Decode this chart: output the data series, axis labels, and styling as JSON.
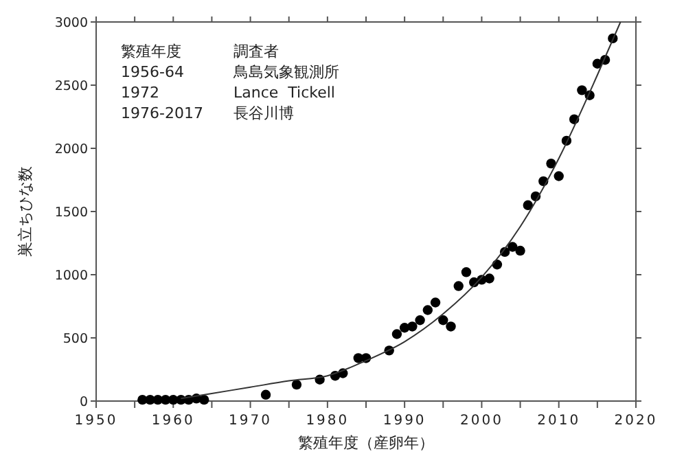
{
  "chart_data": {
    "type": "scatter",
    "xlabel": "繁殖年度（産卵年）",
    "ylabel": "巣立ちひな数",
    "xlim": [
      1950,
      2020
    ],
    "xticks": [
      1950,
      {
        "value": 1955,
        "label": null
      },
      1960,
      {
        "value": 1965,
        "label": null
      },
      1970,
      {
        "value": 1975,
        "label": null
      },
      1980,
      {
        "value": 1985,
        "label": null
      },
      1990,
      {
        "value": 1995,
        "label": null
      },
      2000,
      {
        "value": 2005,
        "label": null
      },
      2010,
      {
        "value": 2015,
        "label": null
      },
      2020
    ],
    "ylim": [
      0,
      3000
    ],
    "yticks": [
      0,
      500,
      1000,
      1500,
      2000,
      2500,
      3000
    ],
    "grid": false,
    "marker": "circle",
    "annotations": [
      "繁殖年度",
      "調査者",
      "1956-64",
      "鳥島気象観測所",
      "1972",
      "Lance  Tickell",
      "1976-2017",
      "長谷川博"
    ],
    "series": [
      {
        "color": "#000000",
        "x": [
          1956,
          1957,
          1958,
          1959,
          1960,
          1961,
          1962,
          1963,
          1964,
          1972,
          1976,
          1979,
          1981,
          1982,
          1984,
          1985,
          1988,
          1989,
          1990,
          1991,
          1992,
          1993,
          1994,
          1995,
          1996,
          1997,
          1998,
          1999,
          2000,
          2001,
          2002,
          2003,
          2004,
          2005,
          2006,
          2007,
          2008,
          2009,
          2010,
          2011,
          2012,
          2013,
          2014,
          2015,
          2016,
          2017
        ],
        "values": [
          10,
          10,
          10,
          10,
          10,
          10,
          10,
          20,
          10,
          50,
          130,
          170,
          200,
          220,
          340,
          340,
          400,
          530,
          580,
          590,
          640,
          720,
          780,
          640,
          590,
          910,
          1020,
          940,
          960,
          970,
          1080,
          1180,
          1220,
          1190,
          1550,
          1620,
          1740,
          1880,
          1780,
          2060,
          2230,
          2460,
          2420,
          2670,
          2700,
          2870
        ]
      },
      {
        "type": "line",
        "color": "#333333",
        "marker": "none",
        "x": [
          1961,
          1965,
          1970,
          1975,
          1980,
          1985,
          1990,
          1995,
          2000,
          2005,
          2010,
          2015,
          2018
        ],
        "values": [
          20,
          60,
          110,
          160,
          200,
          320,
          470,
          690,
          980,
          1380,
          1920,
          2580,
          3000
        ]
      }
    ]
  }
}
